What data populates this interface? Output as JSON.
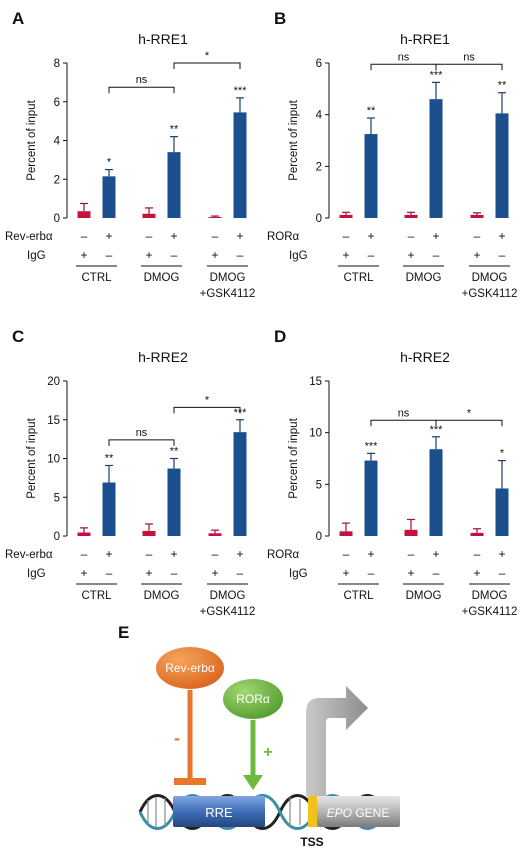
{
  "chart_data": [
    {
      "type": "bar",
      "panel": "A",
      "title": "h-RRE1",
      "ylabel": "Percent of input",
      "ylim": [
        0,
        8
      ],
      "yticks": [
        0,
        2,
        4,
        6,
        8
      ],
      "row1_label": "Rev-erbα",
      "row2_label": "IgG",
      "row1_signs": [
        "–",
        "+",
        "–",
        "+",
        "–",
        "+"
      ],
      "row2_signs": [
        "+",
        "–",
        "+",
        "–",
        "+",
        "–"
      ],
      "groups": [
        {
          "label": "CTRL",
          "line2": ""
        },
        {
          "label": "DMOG",
          "line2": ""
        },
        {
          "label": "DMOG",
          "line2": "+GSK4112"
        }
      ],
      "series": [
        {
          "name": "IgG",
          "values": [
            0.35,
            0.22,
            0.05
          ],
          "errors": [
            0.4,
            0.3,
            0.05
          ]
        },
        {
          "name": "Rev-erbα",
          "values": [
            2.15,
            3.4,
            5.45
          ],
          "errors": [
            0.35,
            0.8,
            0.75
          ]
        }
      ],
      "significance": [
        "*",
        "**",
        "***"
      ],
      "comparisons": [
        {
          "from": 0,
          "to": 1,
          "label": "ns",
          "y": 6.75
        },
        {
          "from": 1,
          "to": 2,
          "label": "*",
          "y": 8.0
        }
      ]
    },
    {
      "type": "bar",
      "panel": "B",
      "title": "h-RRE1",
      "ylabel": "Percent of input",
      "ylim": [
        0,
        6
      ],
      "yticks": [
        0,
        2,
        4,
        6
      ],
      "row1_label": "RORα",
      "row2_label": "IgG",
      "row1_signs": [
        "–",
        "+",
        "–",
        "+",
        "–",
        "+"
      ],
      "row2_signs": [
        "+",
        "–",
        "+",
        "–",
        "+",
        "–"
      ],
      "groups": [
        {
          "label": "CTRL",
          "line2": ""
        },
        {
          "label": "DMOG",
          "line2": ""
        },
        {
          "label": "DMOG",
          "line2": "+GSK4112"
        }
      ],
      "series": [
        {
          "name": "IgG",
          "values": [
            0.12,
            0.12,
            0.12
          ],
          "errors": [
            0.1,
            0.1,
            0.08
          ]
        },
        {
          "name": "RORα",
          "values": [
            3.25,
            4.6,
            4.05
          ],
          "errors": [
            0.62,
            0.65,
            0.8
          ]
        }
      ],
      "significance": [
        "**",
        "***",
        "**"
      ],
      "comparisons": [
        {
          "from": 0,
          "to": 1,
          "label": "ns",
          "y": 5.95
        },
        {
          "from": 1,
          "to": 2,
          "label": "ns",
          "y": 5.95
        }
      ]
    },
    {
      "type": "bar",
      "panel": "C",
      "title": "h-RRE2",
      "ylabel": "Percent of input",
      "ylim": [
        0,
        20
      ],
      "yticks": [
        0,
        5,
        10,
        15,
        20
      ],
      "row1_label": "Rev-erbα",
      "row2_label": "IgG",
      "row1_signs": [
        "–",
        "+",
        "–",
        "+",
        "–",
        "+"
      ],
      "row2_signs": [
        "+",
        "–",
        "+",
        "–",
        "+",
        "–"
      ],
      "groups": [
        {
          "label": "CTRL",
          "line2": ""
        },
        {
          "label": "DMOG",
          "line2": ""
        },
        {
          "label": "DMOG",
          "line2": "+GSK4112"
        }
      ],
      "series": [
        {
          "name": "IgG",
          "values": [
            0.45,
            0.65,
            0.35
          ],
          "errors": [
            0.6,
            0.9,
            0.4
          ]
        },
        {
          "name": "Rev-erbα",
          "values": [
            6.9,
            8.7,
            13.4
          ],
          "errors": [
            2.2,
            1.3,
            1.6
          ]
        }
      ],
      "significance": [
        "**",
        "**",
        "***"
      ],
      "comparisons": [
        {
          "from": 0,
          "to": 1,
          "label": "ns",
          "y": 12.4
        },
        {
          "from": 1,
          "to": 2,
          "label": "*",
          "y": 16.6
        }
      ]
    },
    {
      "type": "bar",
      "panel": "D",
      "title": "h-RRE2",
      "ylabel": "Percent of input",
      "ylim": [
        0,
        15
      ],
      "yticks": [
        0,
        5,
        10,
        15
      ],
      "row1_label": "RORα",
      "row2_label": "IgG",
      "row1_signs": [
        "–",
        "+",
        "–",
        "+",
        "–",
        "+"
      ],
      "row2_signs": [
        "+",
        "–",
        "+",
        "–",
        "+",
        "–"
      ],
      "groups": [
        {
          "label": "CTRL",
          "line2": ""
        },
        {
          "label": "DMOG",
          "line2": ""
        },
        {
          "label": "DMOG",
          "line2": "+GSK4112"
        }
      ],
      "series": [
        {
          "name": "IgG",
          "values": [
            0.45,
            0.6,
            0.3
          ],
          "errors": [
            0.8,
            1.0,
            0.4
          ]
        },
        {
          "name": "RORα",
          "values": [
            7.3,
            8.4,
            4.6
          ],
          "errors": [
            0.7,
            1.2,
            2.7
          ]
        }
      ],
      "significance": [
        "***",
        "***",
        "*"
      ],
      "comparisons": [
        {
          "from": 0,
          "to": 1,
          "label": "ns",
          "y": 11.2
        },
        {
          "from": 1,
          "to": 2,
          "label": "*",
          "y": 11.2
        }
      ]
    }
  ],
  "colors": {
    "bar_blue": "#1b4f8e",
    "bar_red": "#c3123e",
    "rev_erb_oval": "#e8772b",
    "ror_oval": "#6fb83e",
    "arrow_grey": "#9a9a9a",
    "rre_box": "#3f6fb8",
    "tss_mark": "#f2c21b"
  },
  "diagram": {
    "panel": "E",
    "rev_erb_label": "Rev-erbα",
    "ror_label": "RORα",
    "minus_sign": "-",
    "plus_sign": "+",
    "rre_label": "RRE",
    "gene_label_italic": "EPO",
    "gene_label_rest": " GENE",
    "tss_label": "TSS"
  }
}
